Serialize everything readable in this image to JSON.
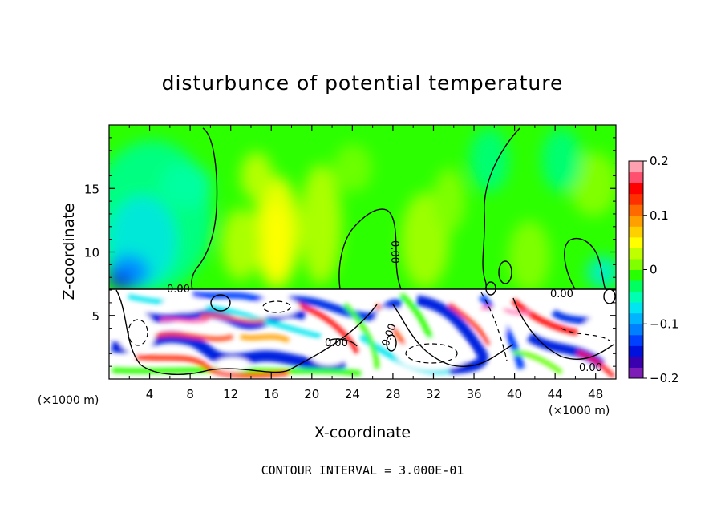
{
  "chart_data": {
    "type": "heatmap",
    "title": "disturbunce of potential temperature",
    "xlabel": "X-coordinate",
    "ylabel": "Z-coordinate",
    "x_unit_label": "(×1000 m)",
    "x_unit_label_right": "(×1000 m)",
    "xlim": [
      0,
      50
    ],
    "ylim": [
      0,
      20
    ],
    "x_ticks": [
      {
        "value": 4,
        "label": "4"
      },
      {
        "value": 8,
        "label": "8"
      },
      {
        "value": 12,
        "label": "12"
      },
      {
        "value": 16,
        "label": "16"
      },
      {
        "value": 20,
        "label": "20"
      },
      {
        "value": 24,
        "label": "24"
      },
      {
        "value": 28,
        "label": "28"
      },
      {
        "value": 32,
        "label": "32"
      },
      {
        "value": 36,
        "label": "36"
      },
      {
        "value": 40,
        "label": "40"
      },
      {
        "value": 44,
        "label": "44"
      },
      {
        "value": 48,
        "label": "48"
      }
    ],
    "y_ticks": [
      {
        "value": 5,
        "label": "5"
      },
      {
        "value": 10,
        "label": "10"
      },
      {
        "value": 15,
        "label": "15"
      }
    ],
    "colorbar": {
      "range": [
        -0.2,
        0.2
      ],
      "ticks": [
        {
          "value": 0.2,
          "label": "0.2"
        },
        {
          "value": 0.1,
          "label": "0.1"
        },
        {
          "value": 0,
          "label": "0"
        },
        {
          "value": -0.1,
          "label": "−0.1"
        },
        {
          "value": -0.2,
          "label": "−0.2"
        }
      ],
      "colors": [
        "#7e1cb8",
        "#3a00b0",
        "#0010dd",
        "#0040ff",
        "#0080ff",
        "#00b4ff",
        "#00e6f0",
        "#00ffb0",
        "#00ff60",
        "#28ff00",
        "#80ff00",
        "#c0ff00",
        "#ffff00",
        "#ffd000",
        "#ffa000",
        "#ff6a00",
        "#ff3000",
        "#ff0000",
        "#ff5070",
        "#ffa0b0"
      ]
    },
    "contour_labels": [
      "0.00",
      "0.00",
      "0.00",
      "0.00",
      "0.00",
      "0.00"
    ],
    "footer": "CONTOUR INTERVAL = 3.000E-01"
  }
}
